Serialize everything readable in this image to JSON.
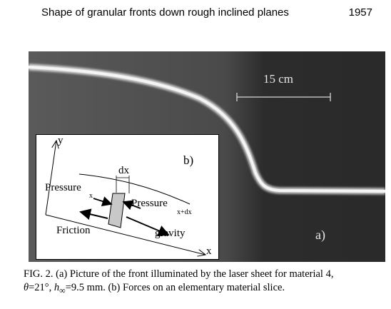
{
  "header": {
    "running_title": "Shape of granular fronts down rough inclined planes",
    "page_number": "1957"
  },
  "figure": {
    "scale_label": "15 cm",
    "panel_a_label": "a)",
    "inset": {
      "panel_label": "b)",
      "y_axis": "y",
      "x_axis": "x",
      "dx_label": "dx",
      "pressure_x": "Pressure",
      "pressure_x_sub": "x",
      "pressure_xdx": "Pressure",
      "pressure_xdx_sub": "x+dx",
      "friction": "Friction",
      "gravity": "gravity"
    }
  },
  "caption": {
    "line1": "FIG. 2. (a) Picture of the front illuminated by the laser sheet for material 4,",
    "theta": "θ",
    "line2_a": "=21°, ",
    "h_inf": "h",
    "h_sub": "∞",
    "line2_b": "=9.5 mm. (b) Forces on an elementary material slice."
  }
}
